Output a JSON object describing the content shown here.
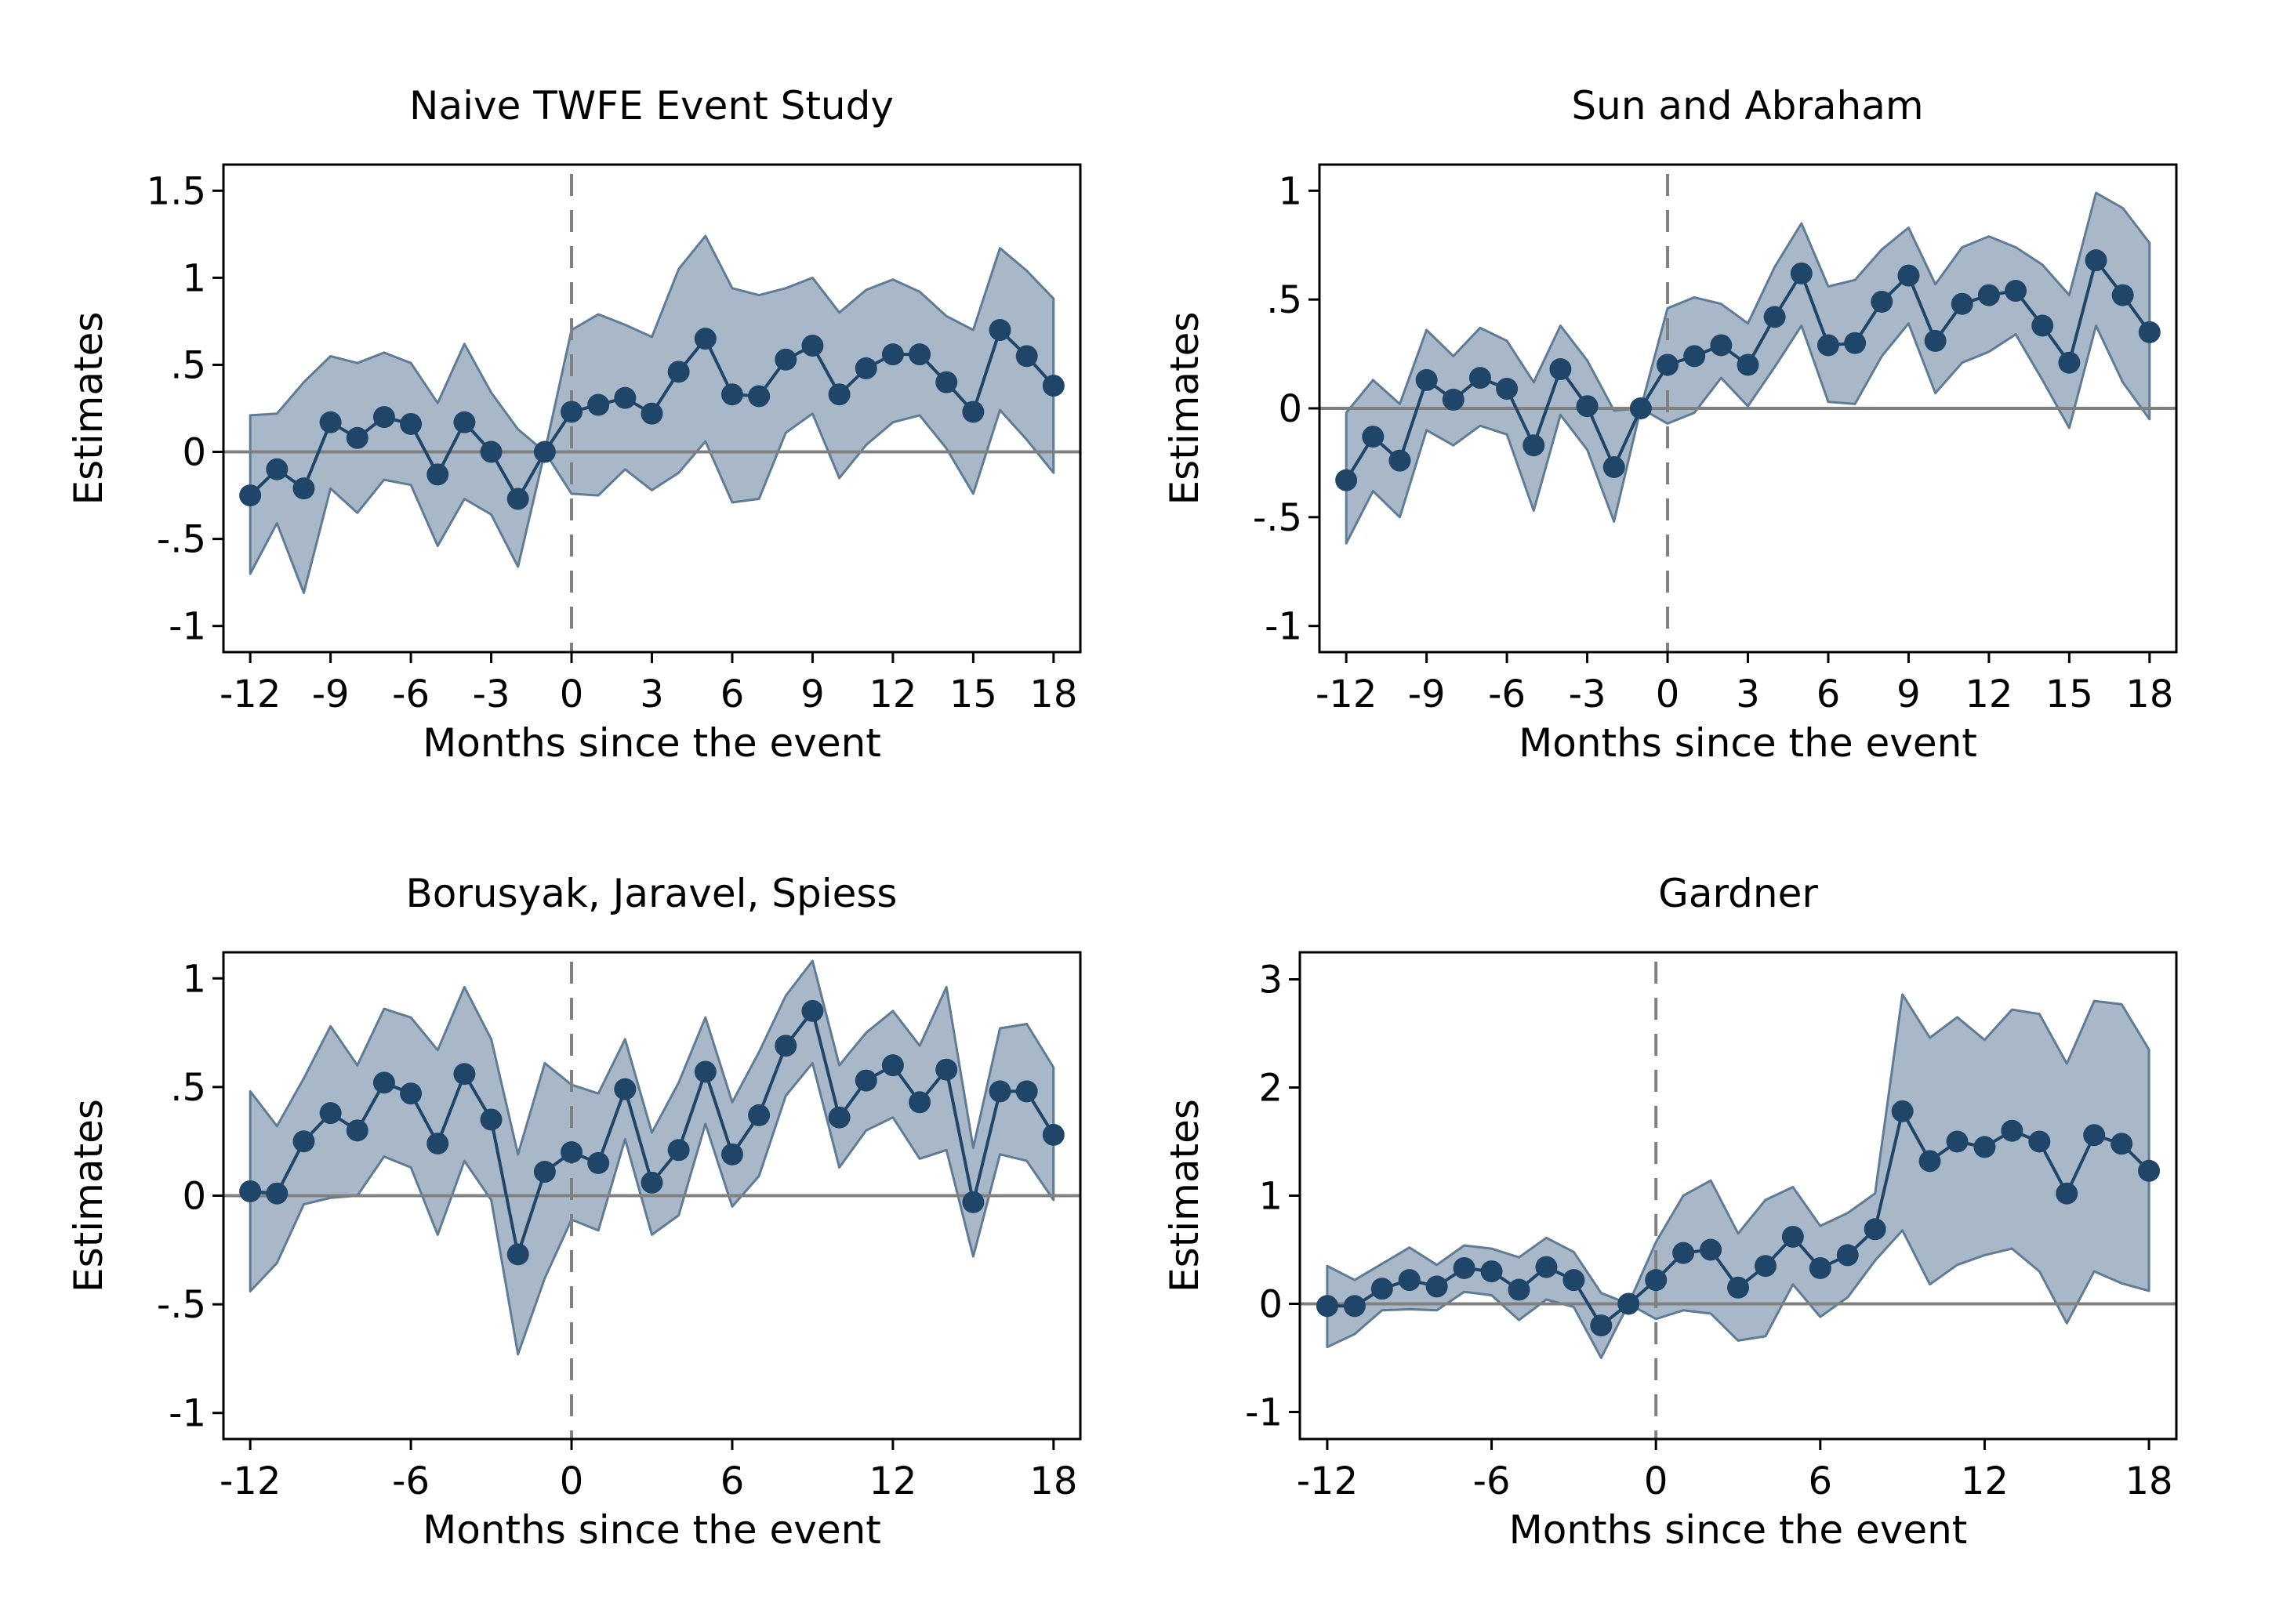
{
  "chart_data": [
    {
      "type": "line",
      "title": "Naive TWFE Event Study",
      "xlabel": "Months since the event",
      "ylabel": "Estimates",
      "xlim": [
        -13,
        19
      ],
      "ylim": [
        -1.15,
        1.65
      ],
      "xticks": [
        -12,
        -9,
        -6,
        -3,
        0,
        3,
        6,
        9,
        12,
        15,
        18
      ],
      "xtick_labels": [
        "-12",
        "-9",
        "-6",
        "-3",
        "0",
        "3",
        "6",
        "9",
        "12",
        "15",
        "18"
      ],
      "yticks": [
        -1,
        -0.5,
        0,
        0.5,
        1,
        1.5
      ],
      "ytick_labels": [
        "-1",
        "-.5",
        "0",
        ".5",
        "1",
        "1.5"
      ],
      "event_line_x": 0,
      "reference_line_y": 0,
      "x": [
        -12,
        -11,
        -10,
        -9,
        -8,
        -7,
        -6,
        -5,
        -4,
        -3,
        -2,
        -1,
        0,
        1,
        2,
        3,
        4,
        5,
        6,
        7,
        8,
        9,
        10,
        11,
        12,
        13,
        14,
        15,
        16,
        17,
        18
      ],
      "series": [
        {
          "values": [
            -0.25,
            -0.1,
            -0.21,
            0.17,
            0.08,
            0.2,
            0.16,
            -0.13,
            0.17,
            0.0,
            -0.27,
            0.0,
            0.23,
            0.27,
            0.31,
            0.22,
            0.46,
            0.65,
            0.33,
            0.32,
            0.53,
            0.61,
            0.33,
            0.48,
            0.56,
            0.56,
            0.4,
            0.23,
            0.7,
            0.55,
            0.38
          ],
          "lower": [
            -0.7,
            -0.41,
            -0.81,
            -0.21,
            -0.35,
            -0.16,
            -0.19,
            -0.54,
            -0.27,
            -0.36,
            -0.66,
            0.0,
            -0.24,
            -0.25,
            -0.1,
            -0.22,
            -0.12,
            0.06,
            -0.29,
            -0.27,
            0.11,
            0.22,
            -0.15,
            0.04,
            0.17,
            0.21,
            0.02,
            -0.24,
            0.24,
            0.07,
            -0.12
          ],
          "upper": [
            0.21,
            0.22,
            0.4,
            0.55,
            0.51,
            0.57,
            0.51,
            0.28,
            0.62,
            0.34,
            0.13,
            0.0,
            0.7,
            0.79,
            0.73,
            0.66,
            1.05,
            1.24,
            0.94,
            0.9,
            0.94,
            1.0,
            0.8,
            0.93,
            0.99,
            0.92,
            0.78,
            0.7,
            1.17,
            1.04,
            0.88
          ]
        }
      ]
    },
    {
      "type": "line",
      "title": "Sun and Abraham",
      "xlabel": "Months since the event",
      "ylabel": "Estimates",
      "xlim": [
        -13,
        19
      ],
      "ylim": [
        -1.12,
        1.12
      ],
      "xticks": [
        -12,
        -9,
        -6,
        -3,
        0,
        3,
        6,
        9,
        12,
        15,
        18
      ],
      "xtick_labels": [
        "-12",
        "-9",
        "-6",
        "-3",
        "0",
        "3",
        "6",
        "9",
        "12",
        "15",
        "18"
      ],
      "yticks": [
        -1,
        -0.5,
        0,
        0.5,
        1
      ],
      "ytick_labels": [
        "-1",
        "-.5",
        "0",
        ".5",
        "1"
      ],
      "event_line_x": 0,
      "reference_line_y": 0,
      "x": [
        -12,
        -11,
        -10,
        -9,
        -8,
        -7,
        -6,
        -5,
        -4,
        -3,
        -2,
        -1,
        0,
        1,
        2,
        3,
        4,
        5,
        6,
        7,
        8,
        9,
        10,
        11,
        12,
        13,
        14,
        15,
        16,
        17,
        18
      ],
      "series": [
        {
          "values": [
            -0.33,
            -0.13,
            -0.24,
            0.13,
            0.04,
            0.14,
            0.09,
            -0.17,
            0.18,
            0.01,
            -0.27,
            0.0,
            0.2,
            0.24,
            0.29,
            0.2,
            0.42,
            0.62,
            0.29,
            0.3,
            0.49,
            0.61,
            0.31,
            0.48,
            0.52,
            0.54,
            0.38,
            0.21,
            0.68,
            0.52,
            0.35
          ],
          "lower": [
            -0.62,
            -0.38,
            -0.5,
            -0.1,
            -0.17,
            -0.08,
            -0.12,
            -0.47,
            -0.03,
            -0.19,
            -0.52,
            0.0,
            -0.07,
            -0.02,
            0.14,
            0.01,
            0.19,
            0.38,
            0.03,
            0.02,
            0.24,
            0.39,
            0.07,
            0.21,
            0.26,
            0.34,
            0.13,
            -0.09,
            0.38,
            0.12,
            -0.05
          ],
          "upper": [
            -0.02,
            0.13,
            0.02,
            0.36,
            0.24,
            0.37,
            0.31,
            0.12,
            0.38,
            0.22,
            -0.01,
            0.0,
            0.46,
            0.51,
            0.48,
            0.39,
            0.65,
            0.85,
            0.56,
            0.59,
            0.73,
            0.83,
            0.57,
            0.74,
            0.79,
            0.74,
            0.66,
            0.52,
            0.99,
            0.92,
            0.76
          ]
        }
      ]
    },
    {
      "type": "line",
      "title": "Borusyak, Jaravel, Spiess",
      "xlabel": "Months since the event",
      "ylabel": "Estimates",
      "xlim": [
        -13,
        19
      ],
      "ylim": [
        -1.12,
        1.12
      ],
      "xticks": [
        -12,
        -6,
        0,
        6,
        12,
        18
      ],
      "xtick_labels": [
        "-12",
        "-6",
        "0",
        "6",
        "12",
        "18"
      ],
      "yticks": [
        -1,
        -0.5,
        0,
        0.5,
        1
      ],
      "ytick_labels": [
        "-1",
        "-.5",
        "0",
        ".5",
        "1"
      ],
      "event_line_x": 0,
      "reference_line_y": 0,
      "x": [
        -12,
        -11,
        -10,
        -9,
        -8,
        -7,
        -6,
        -5,
        -4,
        -3,
        -2,
        -1,
        0,
        1,
        2,
        3,
        4,
        5,
        6,
        7,
        8,
        9,
        10,
        11,
        12,
        13,
        14,
        15,
        16,
        17,
        18
      ],
      "series": [
        {
          "values": [
            0.02,
            0.01,
            0.25,
            0.38,
            0.3,
            0.52,
            0.47,
            0.24,
            0.56,
            0.35,
            -0.27,
            0.11,
            0.2,
            0.15,
            0.49,
            0.06,
            0.21,
            0.57,
            0.19,
            0.37,
            0.69,
            0.85,
            0.36,
            0.53,
            0.6,
            0.43,
            0.58,
            -0.03,
            0.48,
            0.48,
            0.28
          ],
          "lower": [
            -0.44,
            -0.31,
            -0.04,
            -0.01,
            0.0,
            0.18,
            0.13,
            -0.18,
            0.16,
            -0.02,
            -0.73,
            -0.38,
            -0.11,
            -0.16,
            0.26,
            -0.18,
            -0.09,
            0.33,
            -0.05,
            0.09,
            0.46,
            0.61,
            0.13,
            0.3,
            0.36,
            0.17,
            0.21,
            -0.28,
            0.19,
            0.16,
            -0.02
          ],
          "upper": [
            0.48,
            0.32,
            0.54,
            0.78,
            0.6,
            0.86,
            0.82,
            0.67,
            0.96,
            0.72,
            0.19,
            0.61,
            0.51,
            0.47,
            0.72,
            0.29,
            0.52,
            0.82,
            0.43,
            0.66,
            0.92,
            1.08,
            0.6,
            0.75,
            0.85,
            0.69,
            0.96,
            0.22,
            0.77,
            0.79,
            0.59
          ]
        }
      ]
    },
    {
      "type": "line",
      "title": "Gardner",
      "xlabel": "Months since the event",
      "ylabel": "Estimates",
      "xlim": [
        -13,
        19
      ],
      "ylim": [
        -1.25,
        3.25
      ],
      "xticks": [
        -12,
        -6,
        0,
        6,
        12,
        18
      ],
      "xtick_labels": [
        "-12",
        "-6",
        "0",
        "6",
        "12",
        "18"
      ],
      "yticks": [
        -1,
        0,
        1,
        2,
        3
      ],
      "ytick_labels": [
        "-1",
        "0",
        "1",
        "2",
        "3"
      ],
      "event_line_x": 0,
      "reference_line_y": 0,
      "x": [
        -12,
        -11,
        -10,
        -9,
        -8,
        -7,
        -6,
        -5,
        -4,
        -3,
        -2,
        -1,
        0,
        1,
        2,
        3,
        4,
        5,
        6,
        7,
        8,
        9,
        10,
        11,
        12,
        13,
        14,
        15,
        16,
        17,
        18
      ],
      "series": [
        {
          "values": [
            -0.02,
            -0.02,
            0.14,
            0.22,
            0.16,
            0.33,
            0.3,
            0.13,
            0.34,
            0.22,
            -0.2,
            0.0,
            0.22,
            0.47,
            0.5,
            0.15,
            0.35,
            0.62,
            0.33,
            0.45,
            0.69,
            1.78,
            1.32,
            1.5,
            1.45,
            1.6,
            1.5,
            1.02,
            1.56,
            1.48,
            1.23
          ],
          "lower": [
            -0.4,
            -0.28,
            -0.06,
            -0.05,
            -0.06,
            0.11,
            0.08,
            -0.15,
            0.04,
            -0.03,
            -0.5,
            0.0,
            -0.14,
            -0.06,
            -0.09,
            -0.34,
            -0.3,
            0.18,
            -0.12,
            0.06,
            0.4,
            0.68,
            0.18,
            0.36,
            0.45,
            0.51,
            0.3,
            -0.18,
            0.3,
            0.19,
            0.12
          ],
          "upper": [
            0.35,
            0.22,
            0.37,
            0.52,
            0.36,
            0.54,
            0.51,
            0.43,
            0.61,
            0.48,
            0.1,
            0.0,
            0.57,
            1.0,
            1.14,
            0.65,
            0.96,
            1.08,
            0.72,
            0.84,
            1.02,
            2.86,
            2.46,
            2.65,
            2.44,
            2.72,
            2.68,
            2.22,
            2.8,
            2.77,
            2.35
          ]
        }
      ]
    }
  ]
}
